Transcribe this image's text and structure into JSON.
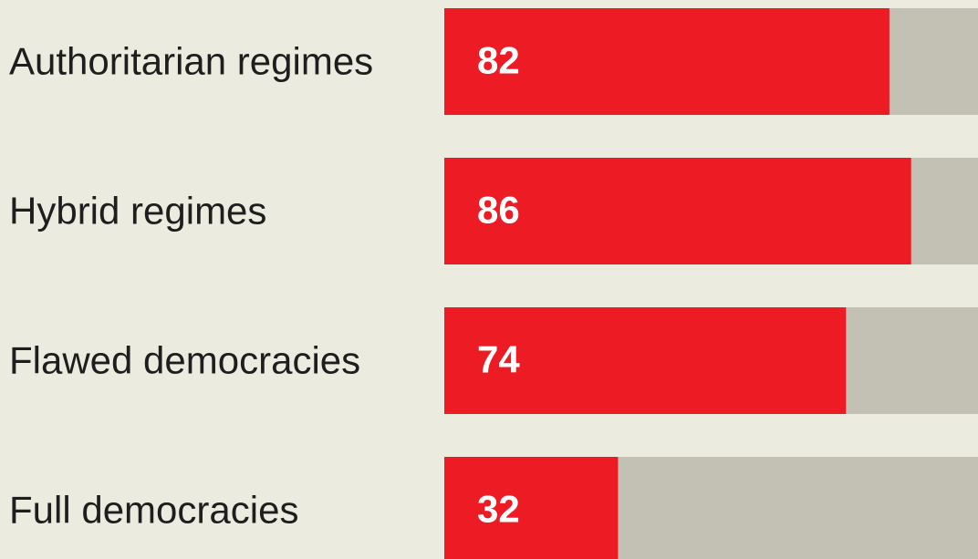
{
  "chart_data": {
    "type": "bar",
    "orientation": "horizontal",
    "categories": [
      "Authoritarian regimes",
      "Hybrid regimes",
      "Flawed democracies",
      "Full democracies"
    ],
    "values": [
      82,
      86,
      74,
      32
    ],
    "color": "#ed1c24",
    "xlim": [
      0,
      100
    ]
  }
}
